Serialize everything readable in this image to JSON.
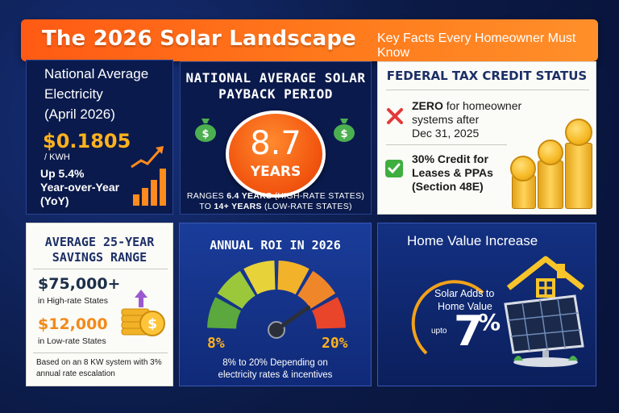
{
  "banner": {
    "title": "The 2026 Solar Landscape",
    "subtitle": "Key Facts Every Homeowner Must Know"
  },
  "electricity": {
    "line1": "National Average",
    "line2": "Electricity",
    "line3": "(April 2026)",
    "price": "$0.1805",
    "unit": "/ KWH",
    "yoy1": "Up 5.4%",
    "yoy2": "Year-over-Year",
    "yoy3": "(YoY)"
  },
  "payback": {
    "heading1": "NATIONAL AVERAGE SOLAR",
    "heading2": "PAYBACK PERIOD",
    "value": "8.7",
    "unit": "YEARS",
    "range_prefix": "RANGES",
    "range_low": "6.4 YEARS",
    "range_low_note": "(HIGH-RATE STATES)",
    "range_to": "TO",
    "range_high": "14+ YEARS",
    "range_high_note": "(LOW-RATE STATES)"
  },
  "tax_credit": {
    "heading": "FEDERAL TAX CREDIT STATUS",
    "item1_bold": "ZERO",
    "item1_rest": " for homeowner",
    "item1_line2": "systems after",
    "item1_line3": "Dec 31, 2025",
    "item2_line1": "30% Credit for",
    "item2_line2": "Leases & PPAs",
    "item2_line3": "(Section 48E)"
  },
  "savings": {
    "heading1": "AVERAGE 25-YEAR",
    "heading2": "SAVINGS RANGE",
    "high_value": "$75,000+",
    "high_label": "in High-rate States",
    "low_value": "$12,000",
    "low_label": "in Low-rate States",
    "note1": "Based on an 8 KW system with 3%",
    "note2": "annual rate escalation"
  },
  "roi": {
    "heading": "ANNUAL ROI IN 2026",
    "min_label": "8%",
    "max_label": "20%",
    "desc1": "8% to 20% Depending on",
    "desc2": "electricity rates & incentives",
    "gauge_level": 0.72
  },
  "home_value": {
    "heading": "Home Value Increase",
    "adds1": "Solar Adds to",
    "adds2": "Home Value",
    "upto": "upto",
    "value": "7",
    "percent": "%"
  },
  "colors": {
    "banner_orange": "#ff6a1a",
    "accent_gold": "#ffb21e",
    "navy": "#0a1a4c",
    "red_x": "#e23a3a",
    "green_check": "#3fae3f",
    "high_green": "#1c3d2e",
    "low_orange": "#f28a1a"
  }
}
